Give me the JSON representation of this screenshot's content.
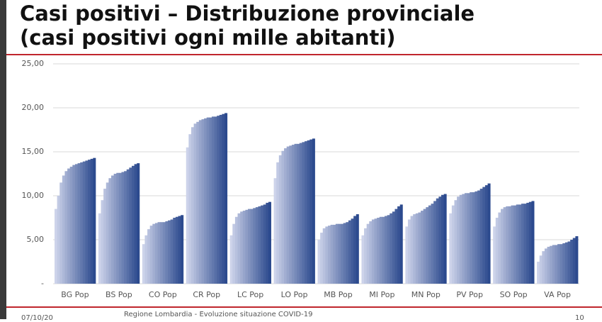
{
  "title_lines": [
    "Casi positivi – Distribuzione provinciale",
    "(casi positivi ogni mille abitanti)"
  ],
  "footer": {
    "date": "07/10/20",
    "source": "Regione Lombardia - Evoluzione situazione COVID-19",
    "page": "10"
  },
  "chart_data": {
    "type": "bar",
    "categories": [
      "BG Pop",
      "BS Pop",
      "CO Pop",
      "CR Pop",
      "LC Pop",
      "LO Pop",
      "MB Pop",
      "MI Pop",
      "MN Pop",
      "PV Pop",
      "SO Pop",
      "VA Pop"
    ],
    "values": [
      [
        8.5,
        10.0,
        11.5,
        12.3,
        12.8,
        13.1,
        13.3,
        13.5,
        13.6,
        13.7,
        13.8,
        13.9,
        14.0,
        14.1,
        14.2,
        14.3
      ],
      [
        8.0,
        9.5,
        10.8,
        11.5,
        12.0,
        12.3,
        12.5,
        12.6,
        12.6,
        12.7,
        12.8,
        13.0,
        13.2,
        13.4,
        13.6,
        13.7
      ],
      [
        4.5,
        5.5,
        6.2,
        6.6,
        6.8,
        6.9,
        7.0,
        7.0,
        7.0,
        7.1,
        7.2,
        7.3,
        7.5,
        7.6,
        7.7,
        7.8
      ],
      [
        15.5,
        17.0,
        17.8,
        18.2,
        18.4,
        18.6,
        18.7,
        18.8,
        18.9,
        18.9,
        19.0,
        19.0,
        19.1,
        19.2,
        19.3,
        19.4
      ],
      [
        5.5,
        6.8,
        7.6,
        8.0,
        8.2,
        8.3,
        8.4,
        8.5,
        8.5,
        8.6,
        8.7,
        8.8,
        8.9,
        9.0,
        9.2,
        9.3
      ],
      [
        12.0,
        13.8,
        14.6,
        15.1,
        15.4,
        15.6,
        15.7,
        15.8,
        15.9,
        15.9,
        16.0,
        16.1,
        16.2,
        16.3,
        16.4,
        16.5
      ],
      [
        5.0,
        5.8,
        6.3,
        6.5,
        6.6,
        6.7,
        6.7,
        6.8,
        6.8,
        6.8,
        6.9,
        7.0,
        7.2,
        7.4,
        7.7,
        7.9
      ],
      [
        5.5,
        6.3,
        6.8,
        7.1,
        7.3,
        7.4,
        7.5,
        7.6,
        7.6,
        7.7,
        7.8,
        8.0,
        8.2,
        8.5,
        8.8,
        9.0
      ],
      [
        6.5,
        7.3,
        7.7,
        7.9,
        8.0,
        8.1,
        8.3,
        8.5,
        8.7,
        8.9,
        9.1,
        9.4,
        9.7,
        9.9,
        10.1,
        10.2
      ],
      [
        8.0,
        8.9,
        9.5,
        9.9,
        10.1,
        10.2,
        10.3,
        10.3,
        10.4,
        10.4,
        10.5,
        10.6,
        10.8,
        11.0,
        11.2,
        11.4
      ],
      [
        6.5,
        7.5,
        8.1,
        8.5,
        8.7,
        8.8,
        8.8,
        8.9,
        8.9,
        9.0,
        9.0,
        9.1,
        9.1,
        9.2,
        9.3,
        9.4
      ],
      [
        2.5,
        3.2,
        3.7,
        4.0,
        4.2,
        4.3,
        4.4,
        4.4,
        4.5,
        4.5,
        4.6,
        4.7,
        4.8,
        5.0,
        5.2,
        5.4
      ]
    ],
    "colors": [
      "#cdd3ea",
      "#2c4a8e"
    ],
    "ylim": [
      0,
      25
    ],
    "yticks": [
      {
        "value": 0,
        "label": "-"
      },
      {
        "value": 5,
        "label": "5,00"
      },
      {
        "value": 10,
        "label": "10,00"
      },
      {
        "value": 15,
        "label": "15,00"
      },
      {
        "value": 20,
        "label": "20,00"
      },
      {
        "value": 25,
        "label": "25,00"
      }
    ],
    "grid": true
  }
}
